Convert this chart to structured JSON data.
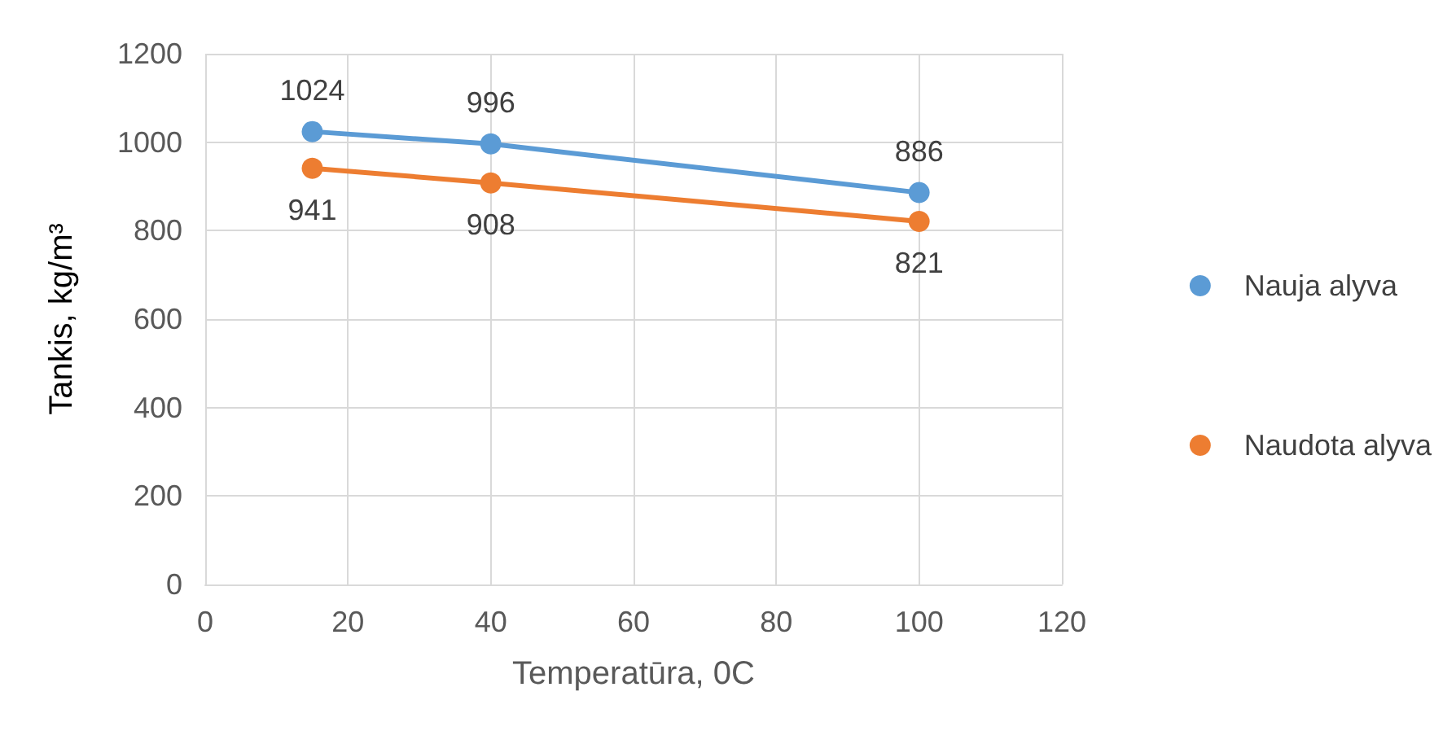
{
  "chart_data": {
    "type": "line",
    "xlabel": "Temperatūra, 0C",
    "ylabel": "Tankis, kg/m³",
    "x": [
      15,
      40,
      100
    ],
    "series": [
      {
        "name": "Nauja alyva",
        "color": "#5b9bd5",
        "values": [
          1024,
          996,
          886
        ]
      },
      {
        "name": "Naudota alyva",
        "color": "#ed7d31",
        "values": [
          941,
          908,
          821
        ]
      }
    ],
    "xlim": [
      0,
      120
    ],
    "xticks": [
      0,
      20,
      40,
      60,
      80,
      100,
      120
    ],
    "ylim": [
      0,
      1200
    ],
    "yticks": [
      0,
      200,
      400,
      600,
      800,
      1000,
      1200
    ],
    "grid": true,
    "legend": "right",
    "marker": "circle",
    "line_style": "solid",
    "data_labels": true
  }
}
